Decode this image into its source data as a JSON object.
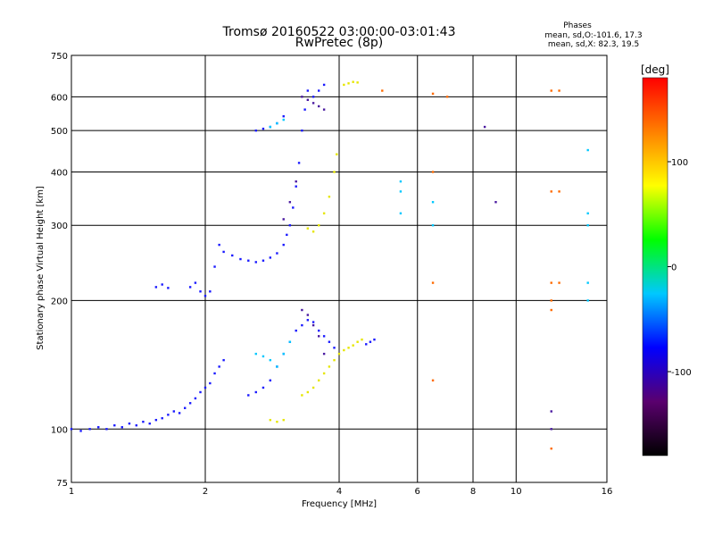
{
  "chart_data": {
    "type": "scatter",
    "title": "Tromsø 20160522 03:00:00-03:01:43",
    "subtitle": "RwPretec (8p)",
    "xlabel": "Frequency [MHz]",
    "ylabel": "Stationary phase Virtual Height [km]",
    "x_scale": "log",
    "y_scale": "log",
    "xlim": [
      1,
      16
    ],
    "ylim": [
      75,
      750
    ],
    "x_ticks": [
      1,
      2,
      4,
      6,
      8,
      10,
      16
    ],
    "y_ticks": [
      75,
      100,
      200,
      300,
      400,
      500,
      600,
      750
    ],
    "grid": true,
    "phases_box": {
      "title": "Phases",
      "line1": "mean, sd,O:-101.6, 17.3",
      "line2": "mean, sd,X: 82.3, 19.5"
    },
    "colorbar": {
      "label": "[deg]",
      "range": [
        -180,
        180
      ],
      "ticks": [
        100,
        0,
        -100
      ],
      "colors": [
        "#000000",
        "#5a006e",
        "#0000ff",
        "#00c8ff",
        "#00ff00",
        "#ffff00",
        "#ff8000",
        "#ff0000"
      ]
    },
    "series": [
      {
        "name": "",
        "color": "#1a1aff",
        "points": [
          [
            1.0,
            100
          ],
          [
            1.05,
            99
          ],
          [
            1.1,
            100
          ],
          [
            1.15,
            101
          ],
          [
            1.2,
            100
          ],
          [
            1.25,
            102
          ],
          [
            1.3,
            101
          ],
          [
            1.35,
            103
          ],
          [
            1.4,
            102
          ],
          [
            1.45,
            104
          ],
          [
            1.5,
            103
          ],
          [
            1.55,
            105
          ],
          [
            1.6,
            106
          ],
          [
            1.65,
            108
          ],
          [
            1.7,
            110
          ],
          [
            1.75,
            109
          ],
          [
            1.8,
            112
          ],
          [
            1.85,
            115
          ],
          [
            1.9,
            118
          ],
          [
            1.95,
            122
          ],
          [
            2.0,
            125
          ],
          [
            2.05,
            128
          ],
          [
            2.1,
            135
          ],
          [
            2.15,
            140
          ],
          [
            2.2,
            145
          ],
          [
            1.55,
            215
          ],
          [
            1.6,
            218
          ],
          [
            1.65,
            214
          ],
          [
            1.85,
            215
          ],
          [
            1.9,
            220
          ],
          [
            1.95,
            210
          ],
          [
            2.0,
            205
          ],
          [
            2.05,
            210
          ],
          [
            2.1,
            240
          ],
          [
            2.15,
            270
          ],
          [
            2.2,
            260
          ],
          [
            2.3,
            255
          ],
          [
            2.4,
            250
          ],
          [
            2.5,
            248
          ],
          [
            2.6,
            246
          ],
          [
            2.7,
            248
          ],
          [
            2.8,
            252
          ],
          [
            2.9,
            258
          ],
          [
            3.0,
            270
          ],
          [
            3.05,
            285
          ],
          [
            3.1,
            300
          ],
          [
            3.15,
            330
          ],
          [
            3.2,
            370
          ],
          [
            3.25,
            420
          ],
          [
            3.3,
            500
          ],
          [
            3.35,
            560
          ],
          [
            3.4,
            620
          ],
          [
            3.5,
            600
          ],
          [
            3.6,
            620
          ],
          [
            3.7,
            640
          ],
          [
            2.6,
            500
          ],
          [
            2.7,
            505
          ],
          [
            2.8,
            510
          ],
          [
            2.9,
            520
          ],
          [
            3.0,
            540
          ],
          [
            2.5,
            120
          ],
          [
            2.6,
            122
          ],
          [
            2.7,
            125
          ],
          [
            2.8,
            130
          ],
          [
            2.9,
            140
          ],
          [
            3.0,
            150
          ],
          [
            3.1,
            160
          ],
          [
            3.2,
            170
          ],
          [
            3.3,
            175
          ],
          [
            3.4,
            180
          ],
          [
            3.5,
            178
          ],
          [
            3.6,
            170
          ],
          [
            3.7,
            165
          ],
          [
            3.8,
            160
          ],
          [
            3.9,
            155
          ],
          [
            4.6,
            158
          ],
          [
            4.7,
            160
          ],
          [
            4.8,
            162
          ]
        ]
      },
      {
        "name": "",
        "color": "#e6e600",
        "points": [
          [
            3.4,
            295
          ],
          [
            3.5,
            290
          ],
          [
            3.6,
            300
          ],
          [
            3.7,
            320
          ],
          [
            3.8,
            350
          ],
          [
            3.9,
            400
          ],
          [
            3.95,
            440
          ],
          [
            4.1,
            640
          ],
          [
            4.2,
            645
          ],
          [
            4.3,
            650
          ],
          [
            4.4,
            648
          ],
          [
            3.3,
            120
          ],
          [
            3.4,
            122
          ],
          [
            3.5,
            125
          ],
          [
            3.6,
            130
          ],
          [
            3.7,
            135
          ],
          [
            3.8,
            140
          ],
          [
            3.9,
            145
          ],
          [
            4.0,
            150
          ],
          [
            4.1,
            153
          ],
          [
            4.2,
            155
          ],
          [
            4.3,
            157
          ],
          [
            4.4,
            160
          ],
          [
            4.5,
            162
          ],
          [
            2.8,
            105
          ],
          [
            2.9,
            104
          ],
          [
            3.0,
            105
          ]
        ]
      },
      {
        "name": "",
        "color": "#00c8ff",
        "points": [
          [
            2.6,
            150
          ],
          [
            2.7,
            148
          ],
          [
            2.8,
            145
          ],
          [
            2.9,
            140
          ],
          [
            3.0,
            150
          ],
          [
            3.1,
            160
          ],
          [
            2.8,
            510
          ],
          [
            2.9,
            520
          ],
          [
            3.0,
            530
          ],
          [
            5.5,
            380
          ],
          [
            5.5,
            360
          ],
          [
            5.5,
            320
          ],
          [
            6.5,
            340
          ],
          [
            6.5,
            300
          ],
          [
            14.5,
            320
          ],
          [
            14.5,
            300
          ],
          [
            14.5,
            220
          ],
          [
            14.5,
            200
          ],
          [
            14.5,
            450
          ]
        ]
      },
      {
        "name": "",
        "color": "#ff6a00",
        "points": [
          [
            5.0,
            620
          ],
          [
            6.5,
            610
          ],
          [
            6.5,
            220
          ],
          [
            6.5,
            130
          ],
          [
            12.0,
            620
          ],
          [
            12.5,
            620
          ],
          [
            12.0,
            360
          ],
          [
            12.5,
            360
          ],
          [
            12.0,
            220
          ],
          [
            12.5,
            220
          ],
          [
            12.0,
            200
          ],
          [
            12.0,
            190
          ],
          [
            12.0,
            90
          ],
          [
            7.0,
            600
          ],
          [
            6.5,
            400
          ]
        ]
      },
      {
        "name": "",
        "color": "#4a1aa0",
        "points": [
          [
            3.3,
            600
          ],
          [
            3.4,
            590
          ],
          [
            3.5,
            580
          ],
          [
            3.6,
            570
          ],
          [
            3.7,
            560
          ],
          [
            3.2,
            380
          ],
          [
            3.1,
            340
          ],
          [
            3.0,
            310
          ],
          [
            3.3,
            190
          ],
          [
            3.4,
            185
          ],
          [
            3.5,
            175
          ],
          [
            3.6,
            165
          ],
          [
            3.7,
            150
          ],
          [
            12.0,
            110
          ],
          [
            12.0,
            100
          ],
          [
            8.5,
            510
          ],
          [
            9.0,
            340
          ]
        ]
      }
    ]
  }
}
